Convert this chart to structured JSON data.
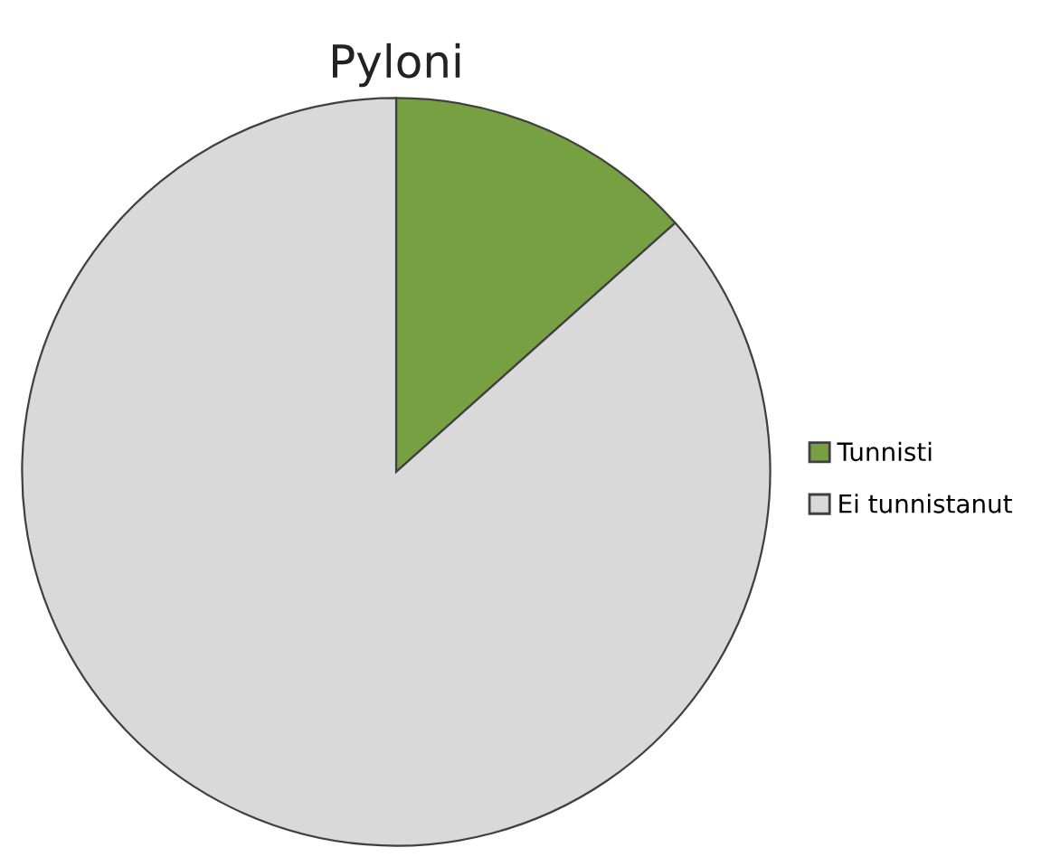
{
  "chart_data": {
    "type": "pie",
    "title": "Pyloni",
    "categories": [
      "Tunnisti",
      "Ei tunnistanut"
    ],
    "values": [
      13.4,
      86.6
    ],
    "colors": [
      "#77a043",
      "#d9d9d9"
    ],
    "legend": "right"
  }
}
